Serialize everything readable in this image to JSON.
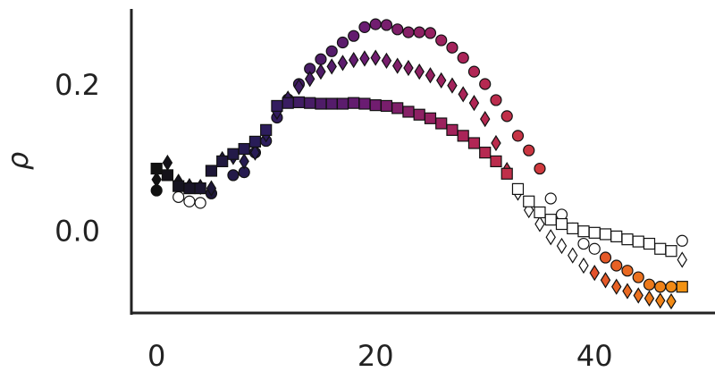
{
  "chart_data": {
    "type": "scatter",
    "ylabel": "ρ",
    "xlim": [
      -2.3,
      51
    ],
    "ylim": [
      -0.11,
      0.307
    ],
    "xticks": [
      0,
      20,
      40
    ],
    "yticks": [
      {
        "value": 0,
        "label": "0.0"
      },
      {
        "value": 0.2,
        "label": "0.2"
      }
    ],
    "grid": false,
    "colormap": [
      "#111111",
      "#2a1d5c",
      "#6b1c72",
      "#b02556",
      "#e04430",
      "#f39212"
    ],
    "clim": [
      0,
      48
    ],
    "series": [
      {
        "marker": "circle",
        "x": [
          0,
          2,
          3,
          4,
          5,
          7,
          8,
          9,
          10,
          11,
          12,
          13,
          14,
          15,
          16,
          17,
          18,
          19,
          20,
          21,
          22,
          23,
          24,
          25,
          26,
          27,
          28,
          29,
          30,
          31,
          32,
          33,
          34,
          35,
          36,
          37,
          38,
          39,
          40,
          41,
          42,
          43,
          44,
          45,
          46,
          47,
          48
        ],
        "values": [
          0.058,
          0.049,
          0.043,
          0.041,
          0.054,
          0.079,
          0.083,
          0.11,
          0.126,
          0.158,
          0.183,
          0.204,
          0.225,
          0.238,
          0.249,
          0.261,
          0.27,
          0.282,
          0.286,
          0.285,
          0.279,
          0.275,
          0.275,
          0.274,
          0.264,
          0.254,
          0.24,
          0.221,
          0.204,
          0.182,
          0.16,
          0.133,
          0.113,
          0.088,
          0.047,
          0.025,
          0.006,
          -0.015,
          -0.022,
          -0.034,
          -0.045,
          -0.052,
          -0.061,
          -0.071,
          -0.074,
          -0.074,
          -0.011
        ],
        "white_x": [
          2,
          3,
          4,
          36,
          37,
          38,
          39,
          40,
          48
        ]
      },
      {
        "marker": "diamond",
        "x": [
          0,
          1,
          2,
          3,
          4,
          5,
          6,
          7,
          8,
          9,
          10,
          11,
          12,
          13,
          14,
          15,
          16,
          17,
          18,
          19,
          20,
          21,
          22,
          23,
          24,
          25,
          26,
          27,
          28,
          29,
          30,
          31,
          32,
          33,
          34,
          35,
          36,
          37,
          38,
          39,
          40,
          41,
          42,
          43,
          44,
          45,
          46,
          47,
          48
        ],
        "values": [
          0.073,
          0.096,
          0.07,
          0.064,
          0.063,
          0.061,
          0.101,
          0.104,
          0.098,
          0.11,
          0.135,
          0.166,
          0.184,
          0.2,
          0.211,
          0.221,
          0.228,
          0.233,
          0.237,
          0.239,
          0.24,
          0.236,
          0.229,
          0.226,
          0.221,
          0.216,
          0.209,
          0.202,
          0.19,
          0.178,
          0.156,
          0.123,
          0.086,
          0.055,
          0.031,
          0.012,
          -0.006,
          -0.018,
          -0.031,
          -0.045,
          -0.055,
          -0.065,
          -0.074,
          -0.08,
          -0.086,
          -0.09,
          -0.093,
          -0.094,
          -0.037
        ],
        "white_x": [
          33,
          34,
          35,
          36,
          37,
          38,
          39,
          48
        ]
      },
      {
        "marker": "square",
        "x": [
          0,
          1,
          2,
          3,
          4,
          5,
          6,
          7,
          8,
          9,
          10,
          11,
          12,
          13,
          14,
          15,
          16,
          17,
          18,
          19,
          20,
          21,
          22,
          23,
          24,
          25,
          26,
          27,
          28,
          29,
          30,
          31,
          32,
          33,
          34,
          35,
          36,
          37,
          38,
          39,
          40,
          41,
          42,
          43,
          44,
          45,
          46,
          47,
          48
        ],
        "values": [
          0.088,
          0.079,
          0.064,
          0.061,
          0.061,
          0.085,
          0.098,
          0.108,
          0.115,
          0.125,
          0.141,
          0.174,
          0.178,
          0.179,
          0.178,
          0.177,
          0.177,
          0.177,
          0.178,
          0.177,
          0.175,
          0.174,
          0.171,
          0.166,
          0.162,
          0.157,
          0.15,
          0.141,
          0.133,
          0.123,
          0.11,
          0.098,
          0.081,
          0.06,
          0.043,
          0.028,
          0.018,
          0.012,
          0.006,
          0.002,
          0,
          -0.002,
          -0.005,
          -0.009,
          -0.012,
          -0.015,
          -0.022,
          -0.025,
          -0.074
        ],
        "white_x": [
          33,
          34,
          35,
          36,
          37,
          38,
          39,
          40,
          41,
          42,
          43,
          44,
          45,
          46,
          47
        ]
      }
    ]
  }
}
